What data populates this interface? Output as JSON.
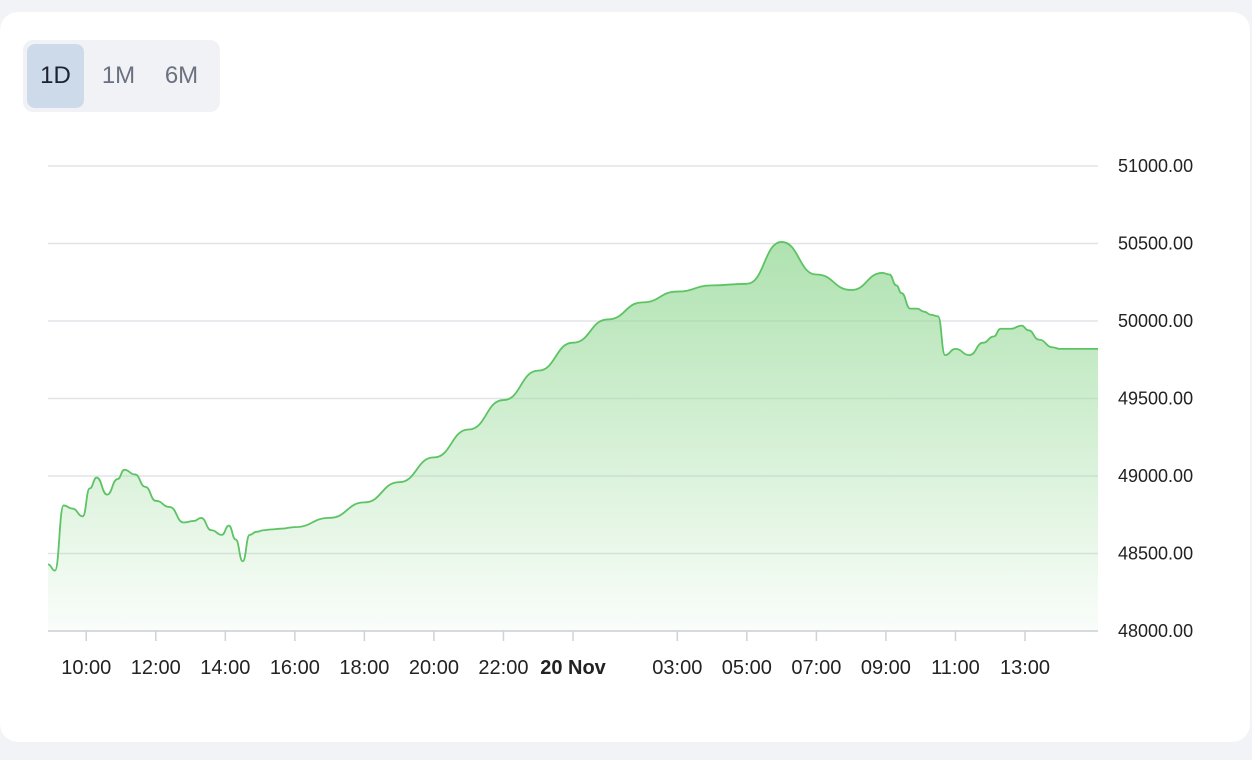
{
  "range_selector": {
    "options": [
      {
        "label": "1D",
        "active": true
      },
      {
        "label": "1M",
        "active": false
      },
      {
        "label": "6M",
        "active": false
      }
    ]
  },
  "colors": {
    "line": "#5cc464",
    "fill_top": "#9bdb9c",
    "grid": "#e1e3e8",
    "active_tab": "#cddaea"
  },
  "chart_data": {
    "type": "area",
    "title": "",
    "xlabel": "",
    "ylabel": "",
    "y_axis_position": "right",
    "grid": "horizontal",
    "ylim": [
      48000,
      51000
    ],
    "y_ticks": [
      "48000.00",
      "48500.00",
      "49000.00",
      "49500.00",
      "50000.00",
      "50500.00",
      "51000.00"
    ],
    "x_tick_labels": [
      {
        "label": "10:00",
        "bold": false
      },
      {
        "label": "12:00",
        "bold": false
      },
      {
        "label": "14:00",
        "bold": false
      },
      {
        "label": "16:00",
        "bold": false
      },
      {
        "label": "18:00",
        "bold": false
      },
      {
        "label": "20:00",
        "bold": false
      },
      {
        "label": "22:00",
        "bold": false
      },
      {
        "label": "20 Nov",
        "bold": true
      },
      {
        "label": "03:00",
        "bold": false
      },
      {
        "label": "05:00",
        "bold": false
      },
      {
        "label": "07:00",
        "bold": false
      },
      {
        "label": "09:00",
        "bold": false
      },
      {
        "label": "11:00",
        "bold": false
      },
      {
        "label": "13:00",
        "bold": false
      }
    ],
    "x_ticks_hours": [
      10,
      12,
      14,
      16,
      18,
      20,
      22,
      24,
      27,
      29,
      31,
      33,
      35,
      37
    ],
    "xlim_hours": [
      8.9,
      39.1
    ],
    "series": [
      {
        "x_hours": [
          8.9,
          9.1,
          9.35,
          9.6,
          9.9,
          10.1,
          10.3,
          10.6,
          10.9,
          11.1,
          11.4,
          11.7,
          12.0,
          12.4,
          12.8,
          13.1,
          13.3,
          13.6,
          13.9,
          14.1,
          14.3,
          14.5,
          14.7,
          14.9,
          15.1,
          15.3,
          15.6,
          16.0,
          17.0,
          18.0,
          19.0,
          20.0,
          21.0,
          22.0,
          23.0,
          24.0,
          25.0,
          26.0,
          27.0,
          28.0,
          29.0,
          30.0,
          31.0,
          32.0,
          32.9,
          33.1,
          33.3,
          33.45,
          33.7,
          33.9,
          34.1,
          34.3,
          34.5,
          34.7,
          35.0,
          35.4,
          35.8,
          36.1,
          36.3,
          36.6,
          36.9,
          37.1,
          37.4,
          37.8,
          38.0,
          38.2,
          38.4,
          38.6,
          38.8,
          39.1
        ],
        "values": [
          48430,
          48390,
          48810,
          48790,
          48740,
          48920,
          48990,
          48880,
          48980,
          49040,
          49010,
          48930,
          48840,
          48800,
          48700,
          48710,
          48730,
          48650,
          48620,
          48680,
          48590,
          48450,
          48620,
          48640,
          48650,
          48655,
          48660,
          48670,
          48730,
          48830,
          48960,
          49120,
          49300,
          49490,
          49680,
          49860,
          50010,
          50120,
          50190,
          50230,
          50240,
          50510,
          50300,
          50200,
          50310,
          50300,
          50230,
          50180,
          50080,
          50080,
          50060,
          50040,
          50030,
          49780,
          49820,
          49780,
          49860,
          49900,
          49950,
          49950,
          49970,
          49940,
          49880,
          49830,
          49820,
          49820,
          49820,
          49820,
          49820,
          49820
        ]
      }
    ]
  }
}
